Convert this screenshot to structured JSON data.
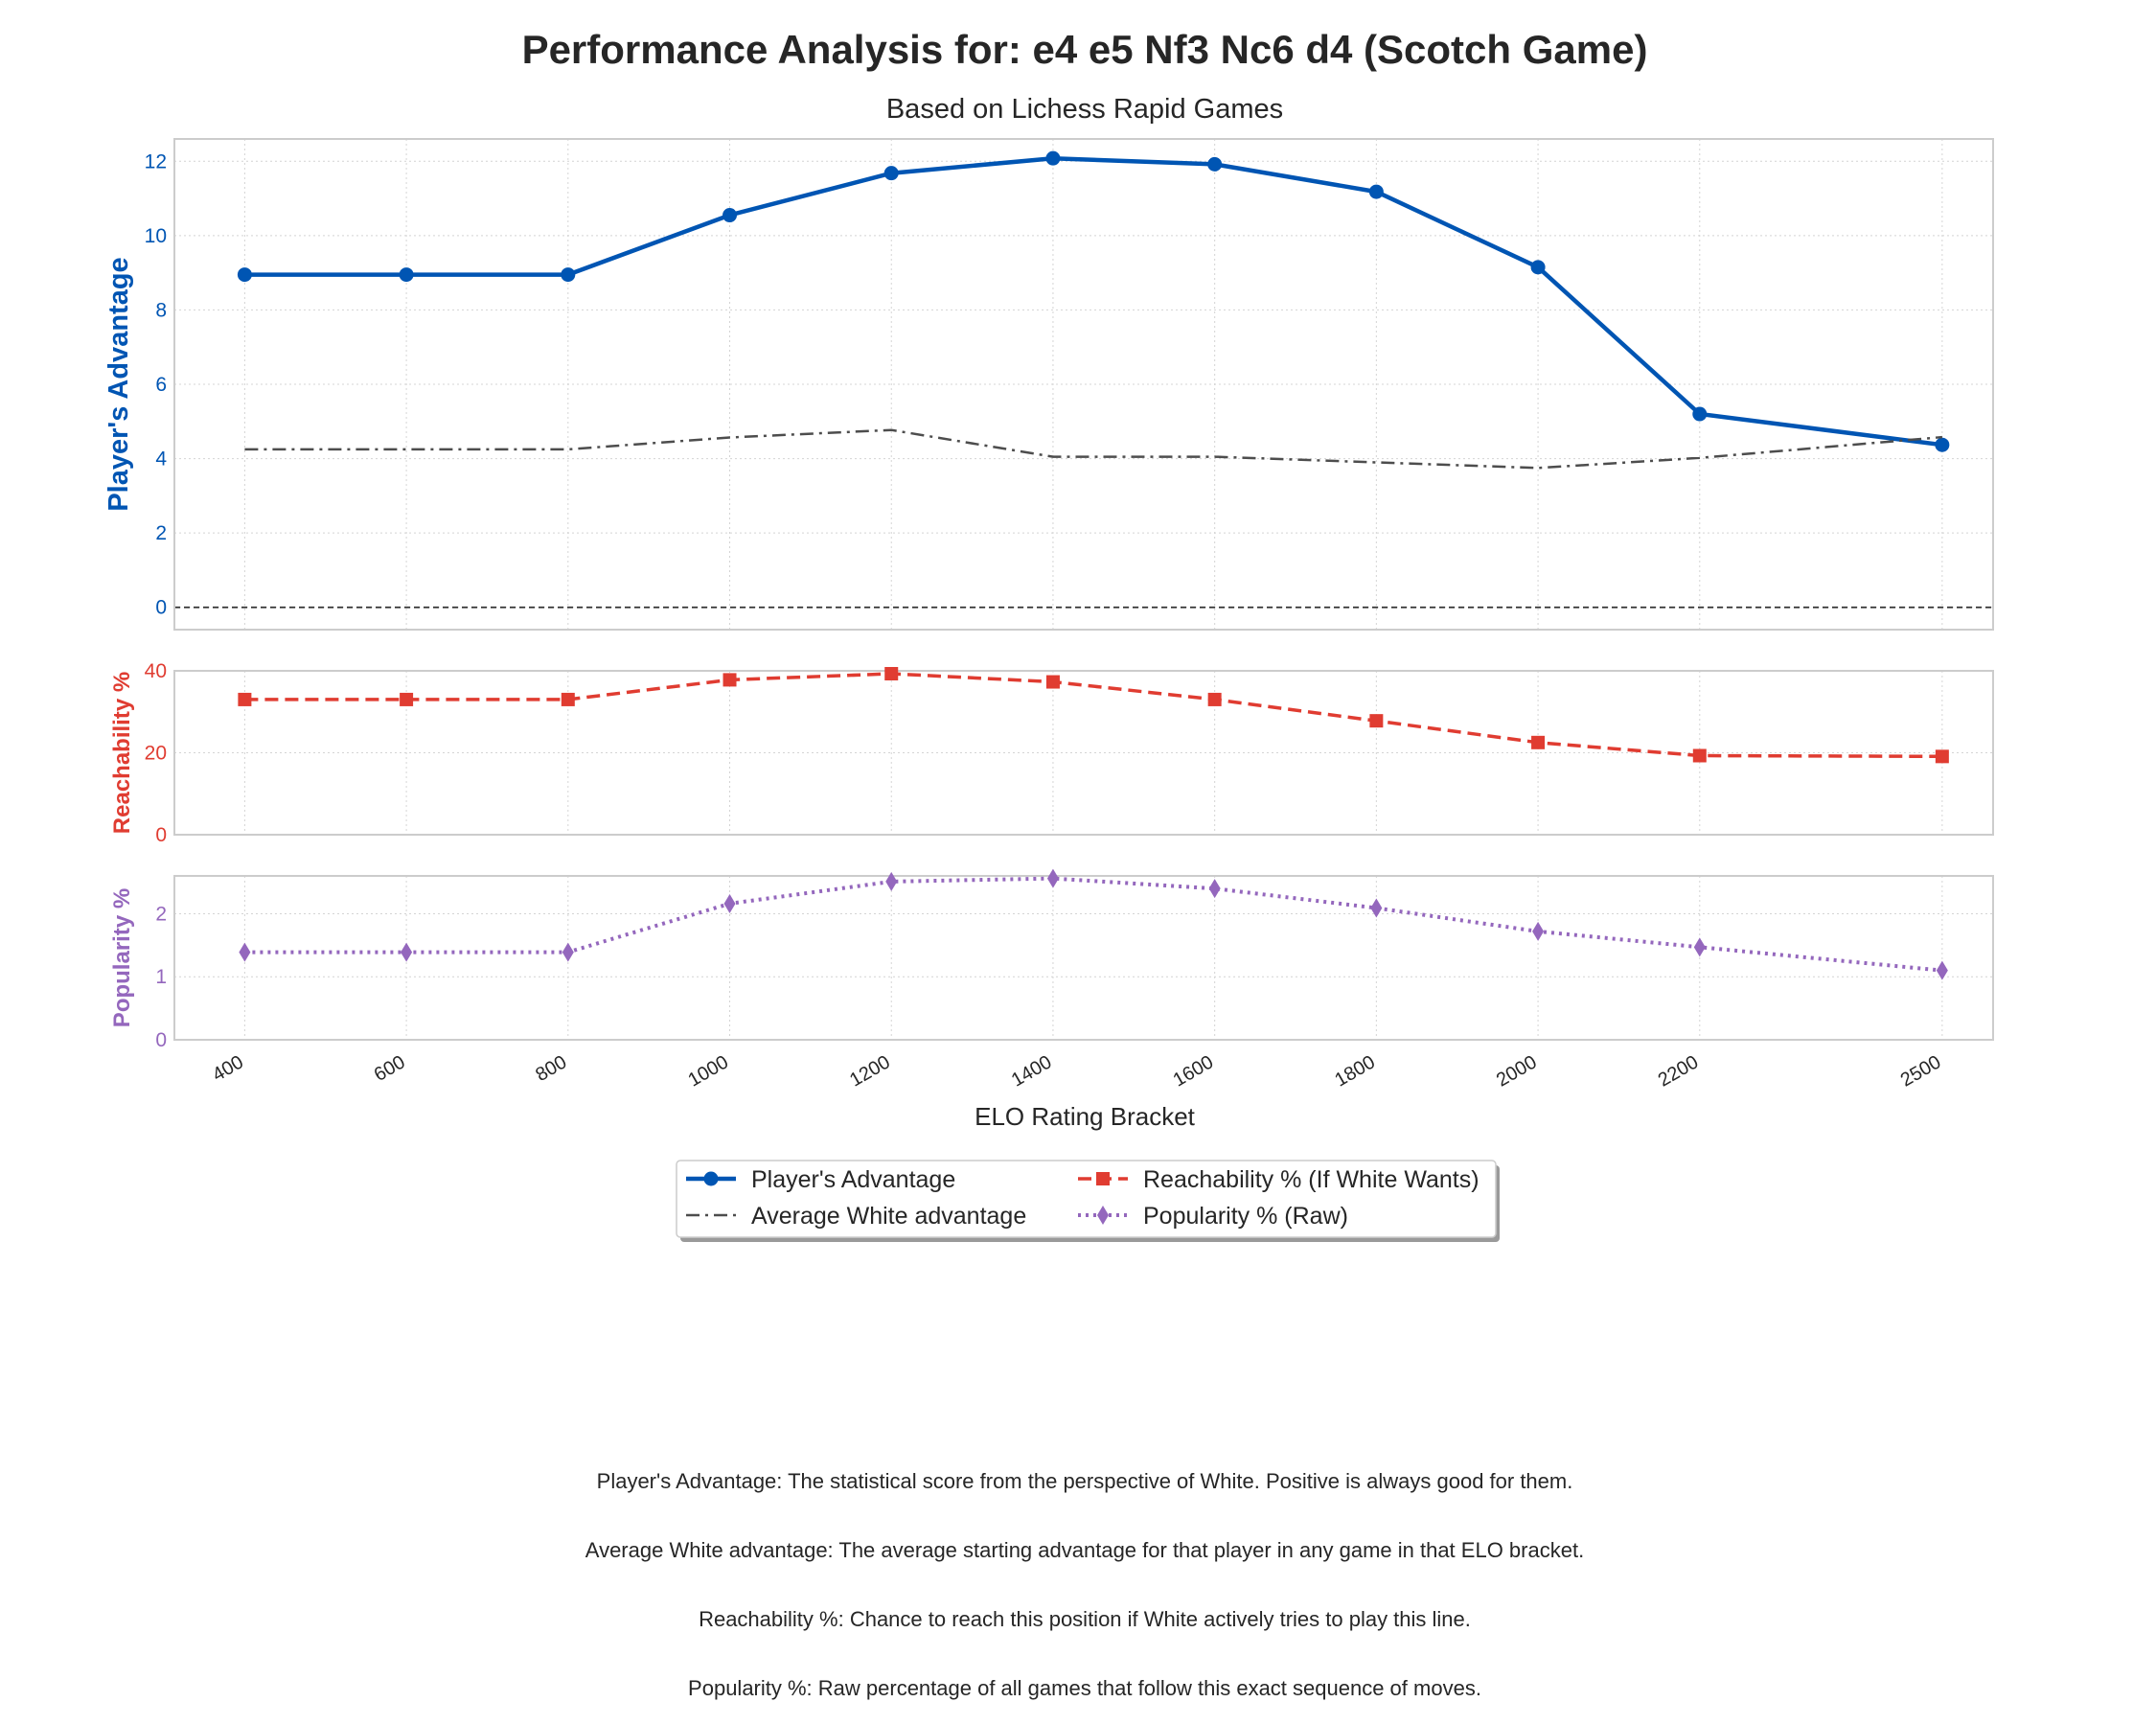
{
  "chart_data": {
    "type": "line",
    "title": "Performance Analysis for: e4 e5 Nf3 Nc6 d4 (Scotch Game)",
    "subtitle": "Based on Lichess Rapid Games",
    "xlabel": "ELO Rating Bracket",
    "x": [
      400,
      600,
      800,
      1000,
      1200,
      1400,
      1600,
      1800,
      2000,
      2200,
      2500
    ],
    "grid": true,
    "legend_position": "bottom-center",
    "panels": [
      {
        "ylabel": "Player's Advantage",
        "ylim": [
          -0.6,
          12.6
        ],
        "yticks": [
          0,
          2,
          4,
          6,
          8,
          10,
          12
        ],
        "tick_color": "#0055b3",
        "zero_line": true,
        "series": [
          {
            "name": "Player's Advantage",
            "color": "#0055b3",
            "style": "solid",
            "marker": "circle",
            "values": [
              8.95,
              8.95,
              8.95,
              10.55,
              11.68,
              12.08,
              11.92,
              11.18,
              9.15,
              5.2,
              4.37
            ]
          },
          {
            "name": "Average White advantage",
            "color": "#4d4d4d",
            "style": "dashdot",
            "marker": "none",
            "values": [
              4.25,
              4.25,
              4.25,
              4.57,
              4.77,
              4.05,
              4.05,
              3.9,
              3.75,
              4.02,
              4.58
            ]
          }
        ]
      },
      {
        "ylabel": "Reachability %",
        "ylim": [
          0,
          40
        ],
        "yticks": [
          0,
          20,
          40
        ],
        "tick_color": "#e03c31",
        "series": [
          {
            "name": "Reachability % (If White Wants)",
            "color": "#e03c31",
            "style": "dashed",
            "marker": "square",
            "values": [
              33.0,
              33.0,
              33.0,
              37.8,
              39.3,
              37.3,
              33.0,
              27.8,
              22.5,
              19.3,
              19.1
            ]
          }
        ]
      },
      {
        "ylabel": "Popularity %",
        "ylim": [
          0,
          2.6
        ],
        "yticks": [
          0,
          1,
          2
        ],
        "tick_color": "#9467bd",
        "series": [
          {
            "name": "Popularity % (Raw)",
            "color": "#9467bd",
            "style": "dotted",
            "marker": "diamond",
            "values": [
              1.39,
              1.39,
              1.39,
              2.16,
              2.51,
              2.56,
              2.4,
              2.09,
              1.72,
              1.47,
              1.1
            ]
          }
        ]
      }
    ],
    "legend": [
      {
        "label": "Player's Advantage",
        "color": "#0055b3",
        "style": "solid",
        "marker": "circle"
      },
      {
        "label": "Average White advantage",
        "color": "#4d4d4d",
        "style": "dashdot",
        "marker": "none"
      },
      {
        "label": "Reachability % (If White Wants)",
        "color": "#e03c31",
        "style": "dashed",
        "marker": "square"
      },
      {
        "label": "Popularity % (Raw)",
        "color": "#9467bd",
        "style": "dotted",
        "marker": "diamond"
      }
    ]
  },
  "notes": [
    "Player's Advantage: The statistical score from the perspective of White. Positive is always good for them.",
    "Average White advantage: The average starting advantage for that player in any game in that ELO bracket.",
    "Reachability %: Chance to reach this position if White actively tries to play this line.",
    "Popularity %: Raw percentage of all games that follow this exact sequence of moves."
  ]
}
